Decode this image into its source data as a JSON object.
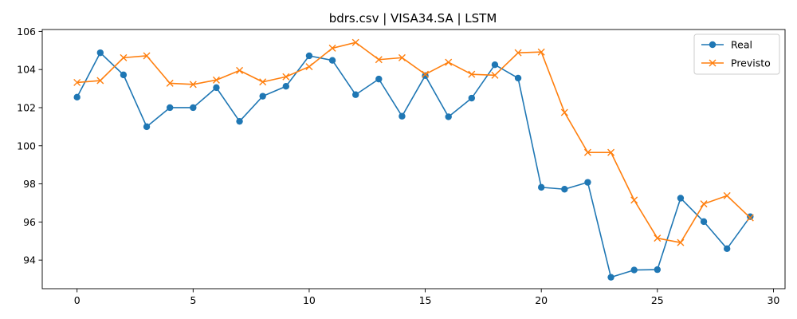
{
  "chart_data": {
    "type": "line",
    "title": "bdrs.csv | VISA34.SA | LSTM",
    "xlabel": "",
    "ylabel": "",
    "xlim": [
      -1.5,
      30.5
    ],
    "ylim": [
      92.5,
      106.1
    ],
    "xticks": [
      0,
      5,
      10,
      15,
      20,
      25,
      30
    ],
    "yticks": [
      94,
      96,
      98,
      100,
      102,
      104,
      106
    ],
    "grid": false,
    "legend_position": "top-right",
    "x": [
      0,
      1,
      2,
      3,
      4,
      5,
      6,
      7,
      8,
      9,
      10,
      11,
      12,
      13,
      14,
      15,
      16,
      17,
      18,
      19,
      20,
      21,
      22,
      23,
      24,
      25,
      26,
      27,
      28,
      29
    ],
    "series": [
      {
        "name": "Real",
        "color": "#1f77b4",
        "marker": "circle",
        "values": [
          102.55,
          104.88,
          103.72,
          101.0,
          102.0,
          102.0,
          103.05,
          101.28,
          102.6,
          103.12,
          104.72,
          104.48,
          102.68,
          103.5,
          101.55,
          103.68,
          101.52,
          102.5,
          104.25,
          103.55,
          97.82,
          97.72,
          98.08,
          93.1,
          93.48,
          93.5,
          97.25,
          96.02,
          94.6,
          96.28
        ]
      },
      {
        "name": "Previsto",
        "color": "#ff7f0e",
        "marker": "x",
        "values": [
          103.32,
          103.42,
          104.62,
          104.72,
          103.28,
          103.22,
          103.45,
          103.95,
          103.35,
          103.62,
          104.15,
          105.12,
          105.42,
          104.52,
          104.62,
          103.75,
          104.38,
          103.75,
          103.7,
          104.88,
          104.92,
          101.75,
          99.65,
          99.65,
          97.15,
          95.15,
          94.92,
          96.95,
          97.38,
          96.22
        ]
      }
    ]
  }
}
